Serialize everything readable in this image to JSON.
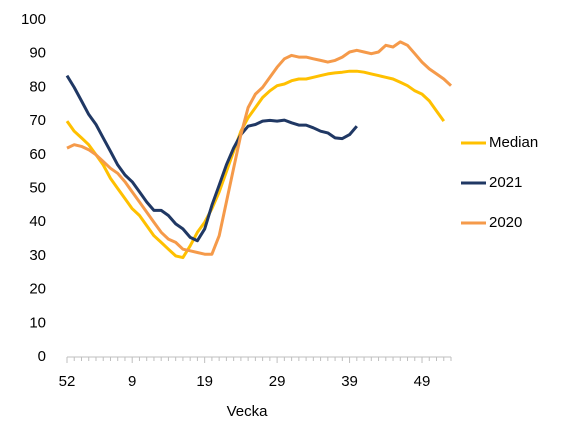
{
  "chart_data": {
    "type": "line",
    "x_label": "Vecka",
    "categories": [
      "52",
      null,
      null,
      null,
      null,
      null,
      null,
      null,
      null,
      "9",
      null,
      null,
      null,
      null,
      null,
      null,
      null,
      null,
      null,
      "19",
      null,
      null,
      null,
      null,
      null,
      null,
      null,
      null,
      null,
      "29",
      null,
      null,
      null,
      null,
      null,
      null,
      null,
      null,
      null,
      "39",
      null,
      null,
      null,
      null,
      null,
      null,
      null,
      null,
      null,
      "49",
      null,
      null,
      null,
      null
    ],
    "series": [
      {
        "name": "Median",
        "color": "#ffc000",
        "values": [
          70,
          67,
          65,
          63,
          60,
          57,
          53,
          50,
          47,
          44,
          42,
          39,
          36,
          34,
          32,
          30,
          29.5,
          33,
          37,
          40,
          44,
          49,
          55,
          61,
          67,
          71,
          74,
          77,
          79,
          80.5,
          81,
          82,
          82.5,
          82.5,
          83,
          83.5,
          84,
          84.3,
          84.5,
          84.8,
          84.8,
          84.5,
          84,
          83.5,
          83,
          82.5,
          81.5,
          80.5,
          79,
          78,
          76,
          73,
          70,
          null
        ]
      },
      {
        "name": "2021",
        "color": "#203864",
        "values": [
          83.5,
          80,
          76,
          72,
          69,
          65,
          61,
          57,
          54,
          52,
          49,
          46,
          43.5,
          43.5,
          42,
          39.5,
          38,
          35.5,
          34.5,
          38,
          45,
          51,
          57,
          62,
          66,
          68.5,
          69,
          70,
          70.2,
          70,
          70.3,
          69.5,
          68.8,
          68.8,
          68,
          67,
          66.5,
          65,
          64.8,
          66,
          68.5,
          null,
          null,
          null,
          null,
          null,
          null,
          null,
          null,
          null,
          null,
          null,
          null,
          null
        ]
      },
      {
        "name": "2020",
        "color": "#f59a4a",
        "values": [
          62,
          63,
          62.5,
          61.5,
          60,
          58,
          56,
          54.5,
          52,
          49,
          46,
          43,
          40,
          37,
          35,
          34,
          32,
          31.5,
          31,
          30.5,
          30.5,
          36,
          46,
          56,
          66,
          74,
          78,
          80,
          83,
          86,
          88.5,
          89.5,
          89,
          89,
          88.5,
          88,
          87.5,
          88,
          89,
          90.5,
          91,
          90.5,
          90,
          90.5,
          92.5,
          92,
          93.5,
          92.5,
          90,
          87.5,
          85.5,
          84,
          82.5,
          80.5
        ]
      }
    ],
    "ylim": [
      0,
      100
    ],
    "yticks": [
      0,
      10,
      20,
      30,
      40,
      50,
      60,
      70,
      80,
      90,
      100
    ],
    "legend": "right"
  }
}
